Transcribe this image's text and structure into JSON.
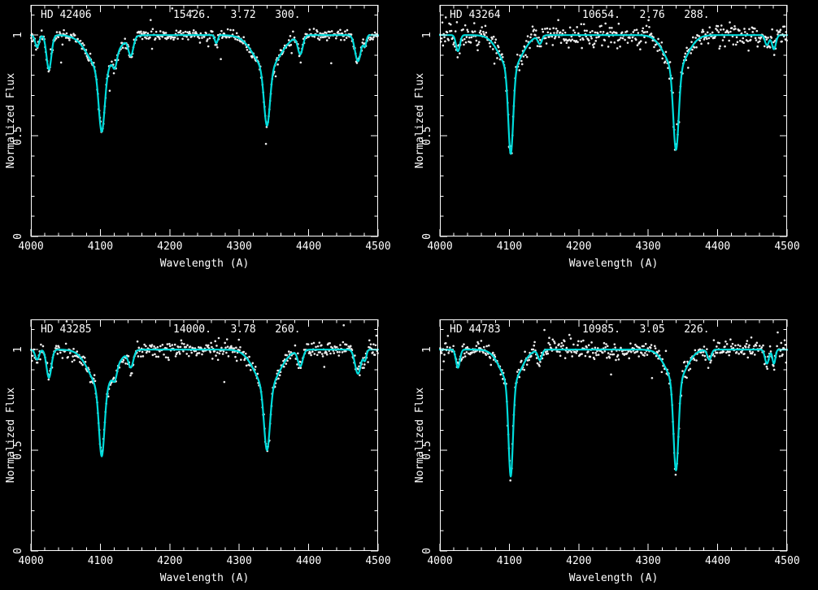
{
  "figure": {
    "background": "#000000",
    "axis_color": "#ffffff",
    "model_color": "#00dcdc",
    "data_color": "#ececec"
  },
  "chart_data": [
    {
      "type": "line",
      "title": "HD 42406",
      "params": "15426.   3.72   300.",
      "xlabel": "Wavelength (A)",
      "ylabel": "Normalized Flux",
      "xlim": [
        4000,
        4500
      ],
      "ylim": [
        0,
        1.15
      ],
      "xticks": [
        4000,
        4100,
        4200,
        4300,
        4400,
        4500
      ],
      "yticks": [
        0,
        0.5,
        1
      ],
      "x_minor_step": 20,
      "y_minor_step": 0.1,
      "noise_sigma": 0.012,
      "seed": 11,
      "series": [
        {
          "name": "observed spectrum",
          "style": "points",
          "color": "#ececec"
        },
        {
          "name": "model fit",
          "style": "line",
          "color": "#00dcdc"
        }
      ],
      "absorption_lines": [
        {
          "center": 4009,
          "depth": 0.06,
          "sigma": 4
        },
        {
          "center": 4026,
          "depth": 0.17,
          "sigma": 5
        },
        {
          "center": 4102,
          "depth": 0.3,
          "sigma": 6,
          "wing_depth": 0.18,
          "wing_sigma": 26
        },
        {
          "center": 4121,
          "depth": 0.06,
          "sigma": 4
        },
        {
          "center": 4144,
          "depth": 0.09,
          "sigma": 5
        },
        {
          "center": 4267,
          "depth": 0.04,
          "sigma": 3
        },
        {
          "center": 4340,
          "depth": 0.28,
          "sigma": 6,
          "wing_depth": 0.17,
          "wing_sigma": 26
        },
        {
          "center": 4388,
          "depth": 0.09,
          "sigma": 5
        },
        {
          "center": 4471,
          "depth": 0.13,
          "sigma": 6
        },
        {
          "center": 4481,
          "depth": 0.05,
          "sigma": 3
        }
      ]
    },
    {
      "type": "line",
      "title": "HD 43264",
      "params": "10654.   2.76   288.",
      "xlabel": "Wavelength (A)",
      "ylabel": "Normalized Flux",
      "xlim": [
        4000,
        4500
      ],
      "ylim": [
        0,
        1.15
      ],
      "xticks": [
        4000,
        4100,
        4200,
        4300,
        4400,
        4500
      ],
      "yticks": [
        0,
        0.5,
        1
      ],
      "x_minor_step": 20,
      "y_minor_step": 0.1,
      "noise_sigma": 0.028,
      "seed": 22,
      "series": [
        {
          "name": "observed spectrum",
          "style": "points",
          "color": "#ececec"
        },
        {
          "name": "model fit",
          "style": "line",
          "color": "#00dcdc"
        }
      ],
      "absorption_lines": [
        {
          "center": 4026,
          "depth": 0.08,
          "sigma": 4
        },
        {
          "center": 4102,
          "depth": 0.42,
          "sigma": 5,
          "wing_depth": 0.17,
          "wing_sigma": 22
        },
        {
          "center": 4144,
          "depth": 0.04,
          "sigma": 4
        },
        {
          "center": 4340,
          "depth": 0.4,
          "sigma": 5.5,
          "wing_depth": 0.17,
          "wing_sigma": 22
        },
        {
          "center": 4471,
          "depth": 0.05,
          "sigma": 4
        },
        {
          "center": 4481,
          "depth": 0.07,
          "sigma": 4
        }
      ]
    },
    {
      "type": "line",
      "title": "HD 43285",
      "params": "14000.   3.78   260.",
      "xlabel": "Wavelength (A)",
      "ylabel": "Normalized Flux",
      "xlim": [
        4000,
        4500
      ],
      "ylim": [
        0,
        1.15
      ],
      "xticks": [
        4000,
        4100,
        4200,
        4300,
        4400,
        4500
      ],
      "yticks": [
        0,
        0.5,
        1
      ],
      "x_minor_step": 20,
      "y_minor_step": 0.1,
      "noise_sigma": 0.02,
      "seed": 33,
      "series": [
        {
          "name": "observed spectrum",
          "style": "points",
          "color": "#ececec"
        },
        {
          "name": "model fit",
          "style": "line",
          "color": "#00dcdc"
        }
      ],
      "absorption_lines": [
        {
          "center": 4009,
          "depth": 0.05,
          "sigma": 4
        },
        {
          "center": 4026,
          "depth": 0.14,
          "sigma": 5
        },
        {
          "center": 4102,
          "depth": 0.33,
          "sigma": 5.5,
          "wing_depth": 0.2,
          "wing_sigma": 24
        },
        {
          "center": 4121,
          "depth": 0.05,
          "sigma": 4
        },
        {
          "center": 4144,
          "depth": 0.08,
          "sigma": 5
        },
        {
          "center": 4340,
          "depth": 0.31,
          "sigma": 6,
          "wing_depth": 0.19,
          "wing_sigma": 24
        },
        {
          "center": 4388,
          "depth": 0.08,
          "sigma": 5
        },
        {
          "center": 4471,
          "depth": 0.12,
          "sigma": 6
        },
        {
          "center": 4481,
          "depth": 0.05,
          "sigma": 3
        }
      ]
    },
    {
      "type": "line",
      "title": "HD 44783",
      "params": "10985.   3.05   226.",
      "xlabel": "Wavelength (A)",
      "ylabel": "Normalized Flux",
      "xlim": [
        4000,
        4500
      ],
      "ylim": [
        0,
        1.15
      ],
      "xticks": [
        4000,
        4100,
        4200,
        4300,
        4400,
        4500
      ],
      "yticks": [
        0,
        0.5,
        1
      ],
      "x_minor_step": 20,
      "y_minor_step": 0.1,
      "noise_sigma": 0.022,
      "seed": 44,
      "series": [
        {
          "name": "observed spectrum",
          "style": "points",
          "color": "#ececec"
        },
        {
          "name": "model fit",
          "style": "line",
          "color": "#00dcdc"
        }
      ],
      "absorption_lines": [
        {
          "center": 4026,
          "depth": 0.09,
          "sigma": 4
        },
        {
          "center": 4102,
          "depth": 0.46,
          "sigma": 4.5,
          "wing_depth": 0.17,
          "wing_sigma": 20
        },
        {
          "center": 4144,
          "depth": 0.05,
          "sigma": 4
        },
        {
          "center": 4340,
          "depth": 0.44,
          "sigma": 5,
          "wing_depth": 0.16,
          "wing_sigma": 20
        },
        {
          "center": 4388,
          "depth": 0.05,
          "sigma": 4
        },
        {
          "center": 4471,
          "depth": 0.07,
          "sigma": 4
        },
        {
          "center": 4481,
          "depth": 0.07,
          "sigma": 3
        }
      ]
    }
  ]
}
